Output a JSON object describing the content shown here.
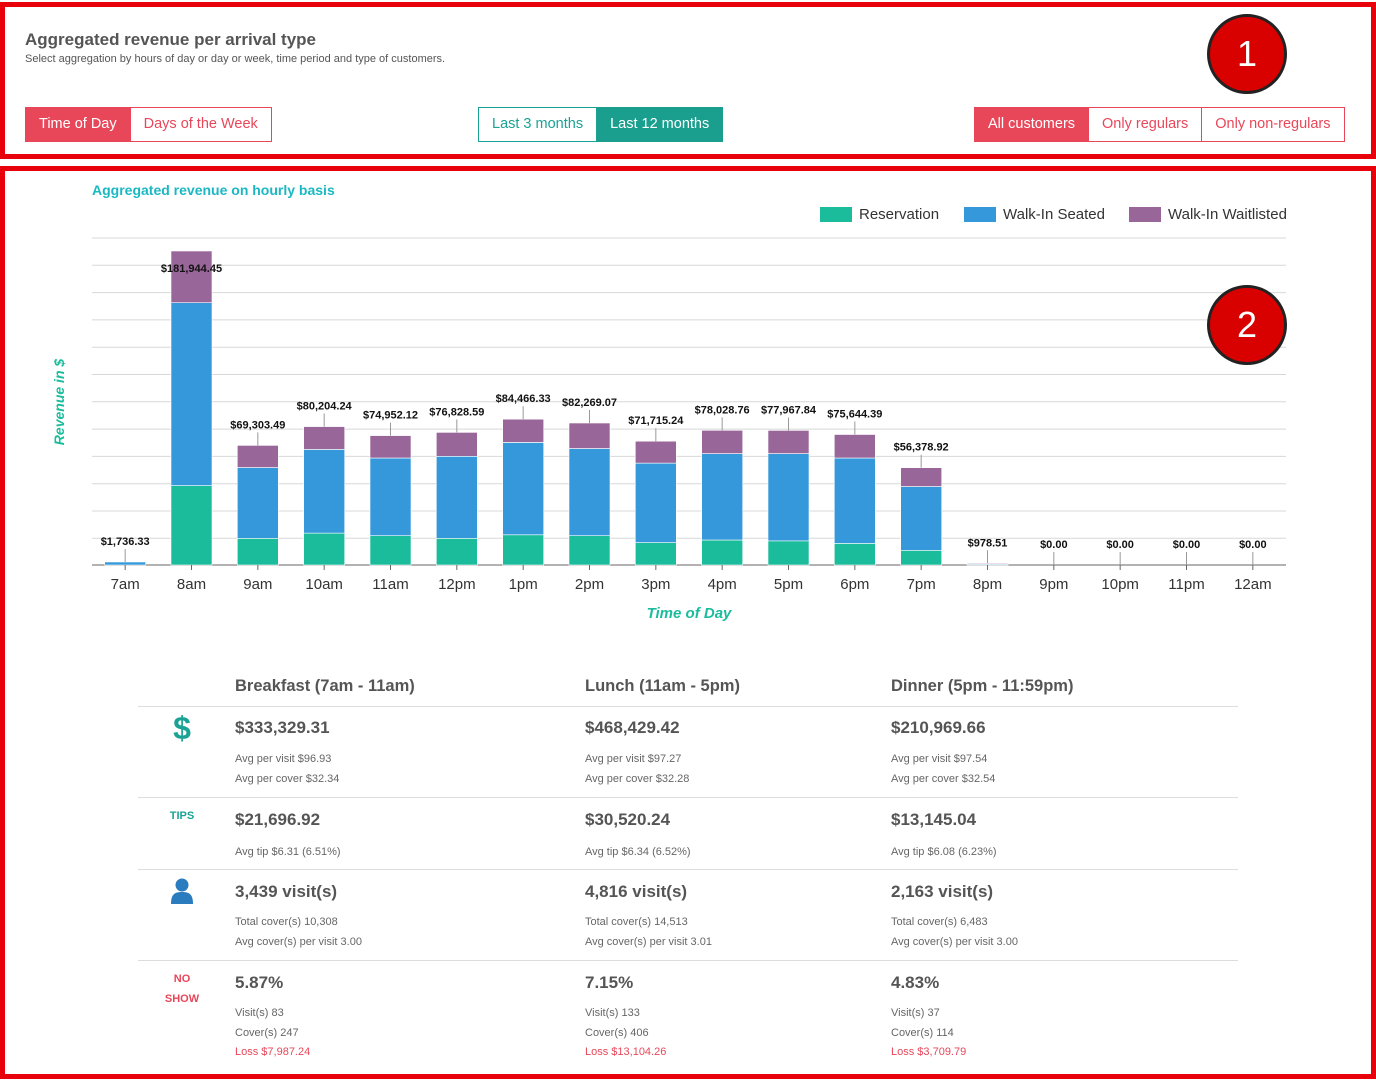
{
  "markers": {
    "one": "1",
    "two": "2"
  },
  "header": {
    "title": "Aggregated revenue per arrival type",
    "subtitle": "Select aggregation by hours of day or day or week, time period and type of customers."
  },
  "aggregation_buttons": [
    {
      "label": "Time of Day",
      "active": true
    },
    {
      "label": "Days of the Week",
      "active": false
    }
  ],
  "period_buttons": [
    {
      "label": "Last 3 months",
      "active": false
    },
    {
      "label": "Last 12 months",
      "active": true
    }
  ],
  "customer_buttons": [
    {
      "label": "All customers",
      "active": true
    },
    {
      "label": "Only regulars",
      "active": false
    },
    {
      "label": "Only non-regulars",
      "active": false
    }
  ],
  "colors": {
    "reservation": "#1abc9c",
    "walkin_seated": "#3498db",
    "walkin_waitlisted": "#996699",
    "accent_red": "#e8475a",
    "accent_teal": "#1a9e8e"
  },
  "chart_data": {
    "type": "bar",
    "stacked": true,
    "title": "Aggregated revenue on hourly basis",
    "xlabel": "Time of Day",
    "ylabel": "Revenue in $",
    "legend_position": "top-right",
    "grid": true,
    "categories": [
      "7am",
      "8am",
      "9am",
      "10am",
      "11am",
      "12pm",
      "1pm",
      "2pm",
      "3pm",
      "4pm",
      "5pm",
      "6pm",
      "7pm",
      "8pm",
      "9pm",
      "10pm",
      "11pm",
      "12am"
    ],
    "totals_labels": [
      "$1,736.33",
      "$181,944.45",
      "$69,303.49",
      "$80,204.24",
      "$74,952.12",
      "$76,828.59",
      "$84,466.33",
      "$82,269.07",
      "$71,715.24",
      "$78,028.76",
      "$77,967.84",
      "$75,644.39",
      "$56,378.92",
      "$978.51",
      "$0.00",
      "$0.00",
      "$0.00",
      "$0.00"
    ],
    "series": [
      {
        "name": "Reservation",
        "values": [
          0,
          46000,
          15500,
          18500,
          17000,
          15500,
          17500,
          17000,
          13000,
          14500,
          14000,
          12500,
          8500,
          0,
          0,
          0,
          0,
          0
        ]
      },
      {
        "name": "Walk-In Seated",
        "values": [
          1736.33,
          106000,
          41000,
          48500,
          45000,
          47500,
          53500,
          50500,
          46000,
          50000,
          50500,
          49500,
          37000,
          500,
          0,
          0,
          0,
          0
        ]
      },
      {
        "name": "Walk-In Waitlisted",
        "values": [
          0,
          29944.45,
          12803.49,
          13204.24,
          12952.12,
          13828.59,
          13466.33,
          14769.07,
          12715.24,
          13528.76,
          13467.84,
          13644.39,
          10878.92,
          478.51,
          0,
          0,
          0,
          0
        ]
      }
    ],
    "ylim": [
      0,
      190000
    ]
  },
  "summary": {
    "columns": [
      {
        "heading": "Breakfast (7am - 11am)",
        "revenue": "$333,329.31",
        "avg_visit": "Avg per visit $96.93",
        "avg_cover": "Avg per cover $32.34",
        "tips": "$21,696.92",
        "avg_tip": "Avg tip $6.31 (6.51%)",
        "visits": "3,439 visit(s)",
        "total_covers": "Total cover(s) 10,308",
        "avg_covers": "Avg cover(s) per visit 3.00",
        "noshow_pct": "5.87%",
        "noshow_visits": "Visit(s) 83",
        "noshow_covers": "Cover(s) 247",
        "noshow_loss": "Loss $7,987.24"
      },
      {
        "heading": "Lunch (11am - 5pm)",
        "revenue": "$468,429.42",
        "avg_visit": "Avg per visit $97.27",
        "avg_cover": "Avg per cover $32.28",
        "tips": "$30,520.24",
        "avg_tip": "Avg tip $6.34 (6.52%)",
        "visits": "4,816 visit(s)",
        "total_covers": "Total cover(s) 14,513",
        "avg_covers": "Avg cover(s) per visit 3.01",
        "noshow_pct": "7.15%",
        "noshow_visits": "Visit(s) 133",
        "noshow_covers": "Cover(s) 406",
        "noshow_loss": "Loss $13,104.26"
      },
      {
        "heading": "Dinner (5pm - 11:59pm)",
        "revenue": "$210,969.66",
        "avg_visit": "Avg per visit $97.54",
        "avg_cover": "Avg per cover $32.54",
        "tips": "$13,145.04",
        "avg_tip": "Avg tip $6.08 (6.23%)",
        "visits": "2,163 visit(s)",
        "total_covers": "Total cover(s) 6,483",
        "avg_covers": "Avg cover(s) per visit 3.00",
        "noshow_pct": "4.83%",
        "noshow_visits": "Visit(s) 37",
        "noshow_covers": "Cover(s) 114",
        "noshow_loss": "Loss $3,709.79"
      }
    ],
    "row_labels": {
      "revenue_icon": "$",
      "tips": "TIPS",
      "visits_icon": "person-icon",
      "noshow_line1": "NO",
      "noshow_line2": "SHOW"
    }
  }
}
